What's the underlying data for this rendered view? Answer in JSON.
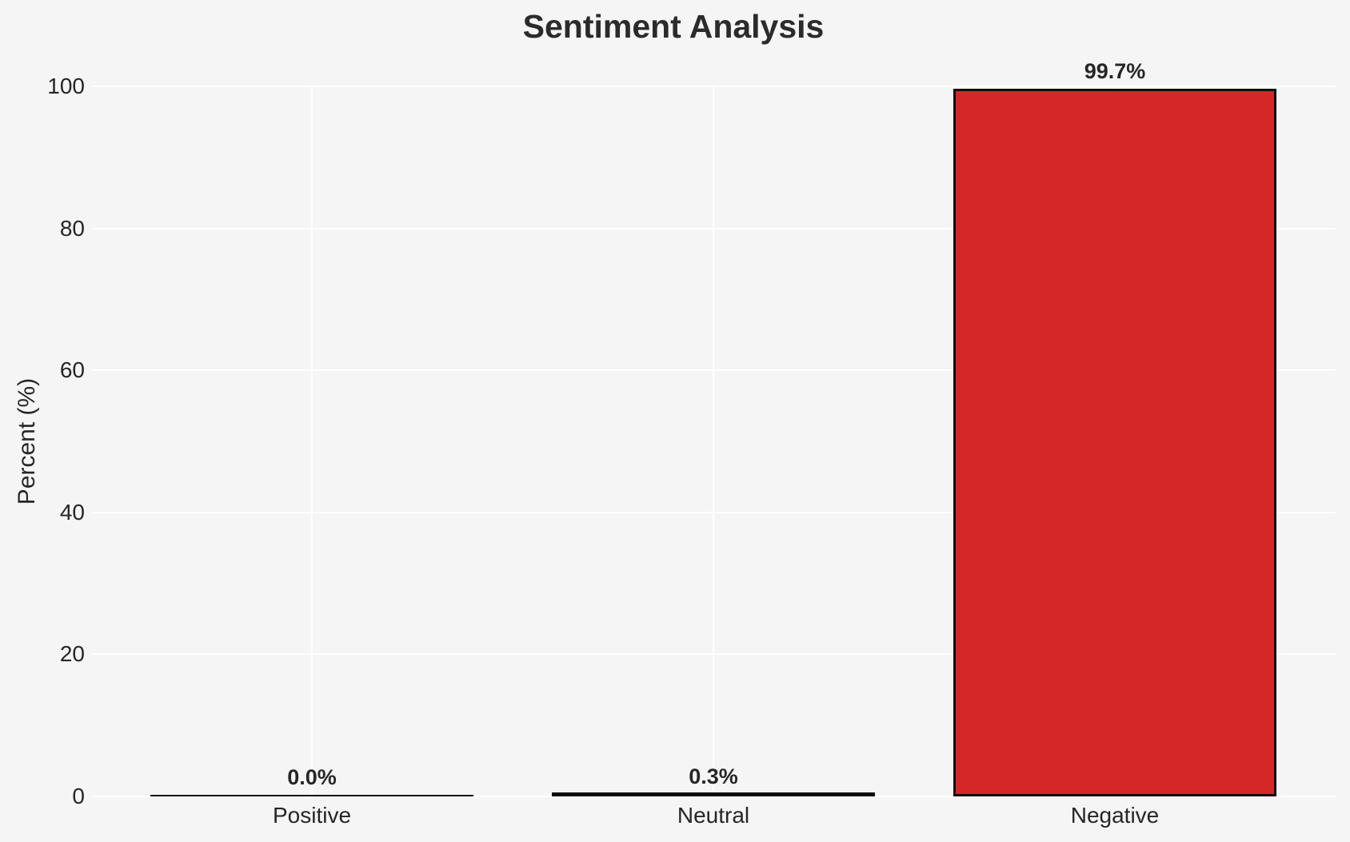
{
  "chart_data": {
    "type": "bar",
    "title": "Sentiment Analysis",
    "xlabel": "",
    "ylabel": "Percent (%)",
    "categories": [
      "Positive",
      "Neutral",
      "Negative"
    ],
    "values": [
      0.0,
      0.3,
      99.7
    ],
    "value_labels": [
      "0.0%",
      "0.3%",
      "99.7%"
    ],
    "ylim": [
      0,
      100
    ],
    "yticks": [
      0,
      20,
      40,
      60,
      80,
      100
    ],
    "grid": true,
    "legend": false,
    "colors": {
      "figure_background": "#f5f5f6",
      "gridline": "#ffffff",
      "negative_bar_fill": "#d62728",
      "bar_edge": "#0d0d0d",
      "text": "#262626"
    }
  }
}
